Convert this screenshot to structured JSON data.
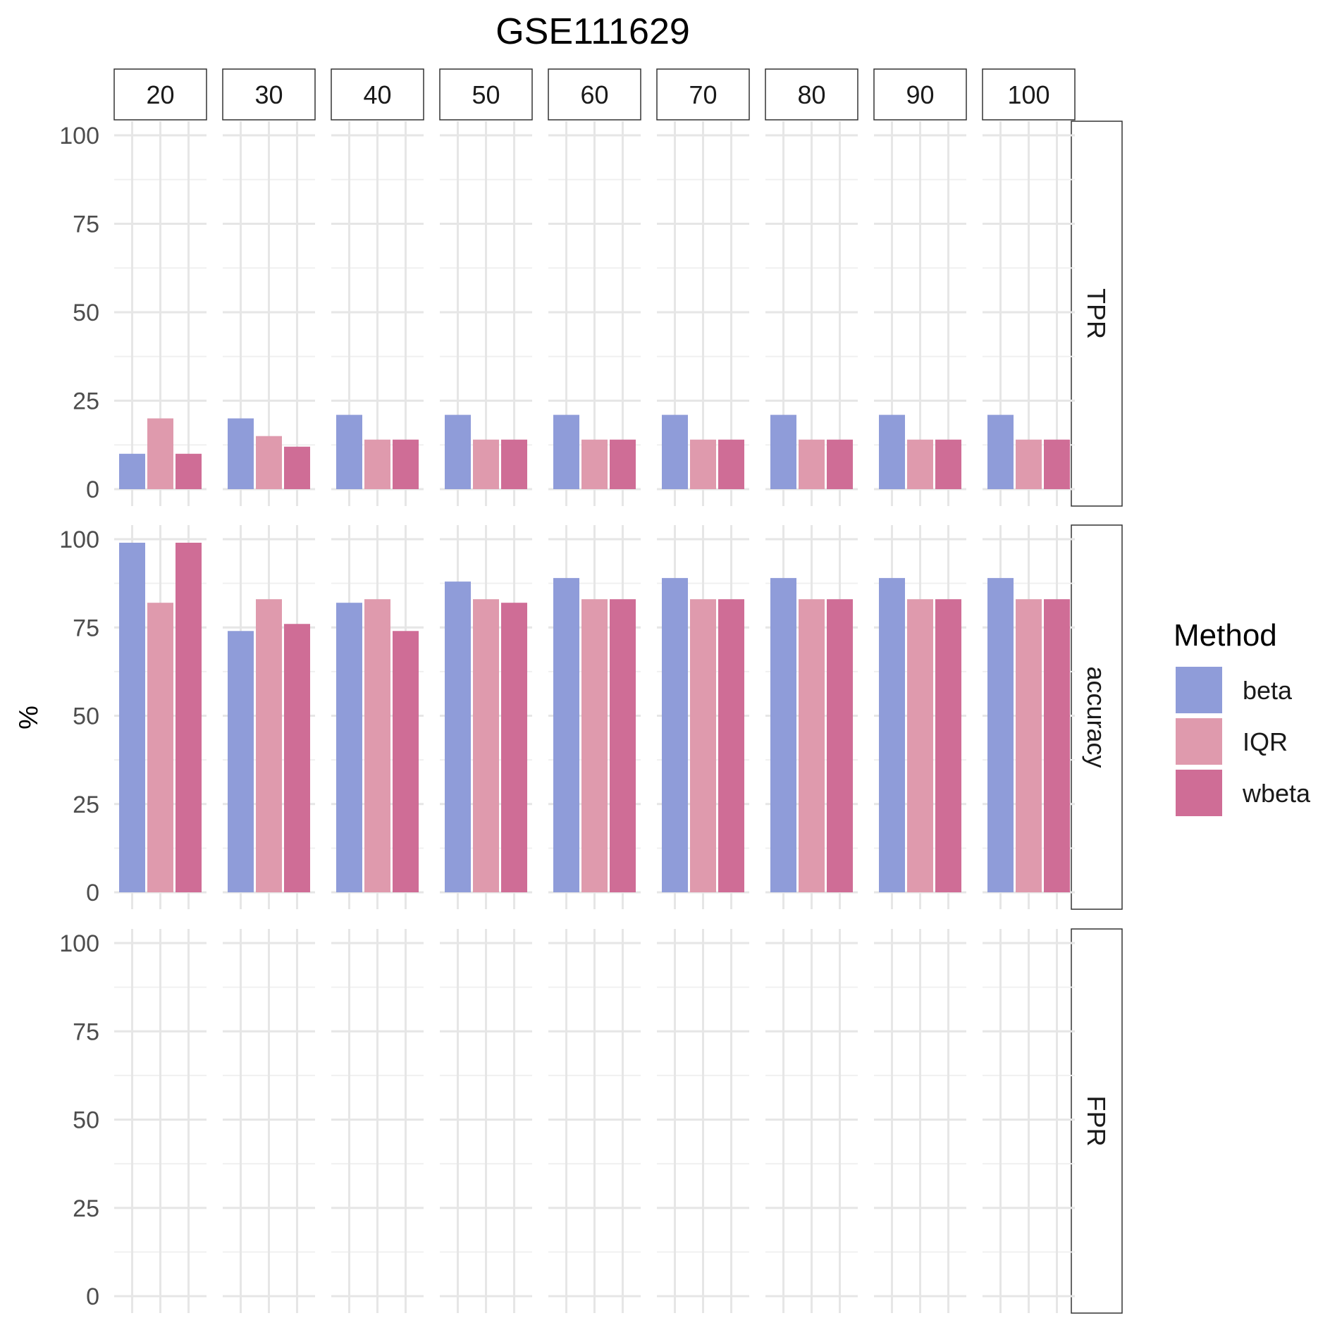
{
  "chart_data": {
    "type": "bar",
    "title": "GSE111629",
    "ylabel": "%",
    "xlabel": "",
    "ylim": [
      0,
      100
    ],
    "yticks": [
      0,
      25,
      50,
      75,
      100
    ],
    "grid": true,
    "legend_position": "right",
    "legend_title": "Method",
    "column_facets": [
      "20",
      "30",
      "40",
      "50",
      "60",
      "70",
      "80",
      "90",
      "100"
    ],
    "row_facets": [
      "TPR",
      "accuracy",
      "FPR"
    ],
    "series": [
      {
        "name": "beta",
        "color": "#8f9cd9"
      },
      {
        "name": "IQR",
        "color": "#df9aad"
      },
      {
        "name": "wbeta",
        "color": "#cf6d96"
      }
    ],
    "values": {
      "TPR": {
        "beta": [
          10,
          20,
          21,
          21,
          21,
          21,
          21,
          21,
          21
        ],
        "IQR": [
          20,
          15,
          14,
          14,
          14,
          14,
          14,
          14,
          14
        ],
        "wbeta": [
          10,
          12,
          14,
          14,
          14,
          14,
          14,
          14,
          14
        ]
      },
      "accuracy": {
        "beta": [
          99,
          74,
          82,
          88,
          89,
          89,
          89,
          89,
          89
        ],
        "IQR": [
          82,
          83,
          83,
          83,
          83,
          83,
          83,
          83,
          83
        ],
        "wbeta": [
          99,
          76,
          74,
          82,
          83,
          83,
          83,
          83,
          83
        ]
      },
      "FPR": {
        "beta": [
          0,
          0,
          0,
          0,
          0,
          0,
          0,
          0,
          0
        ],
        "IQR": [
          0,
          0,
          0,
          0,
          0,
          0,
          0,
          0,
          0
        ],
        "wbeta": [
          0,
          0,
          0,
          0,
          0,
          0,
          0,
          0,
          0
        ]
      }
    }
  }
}
